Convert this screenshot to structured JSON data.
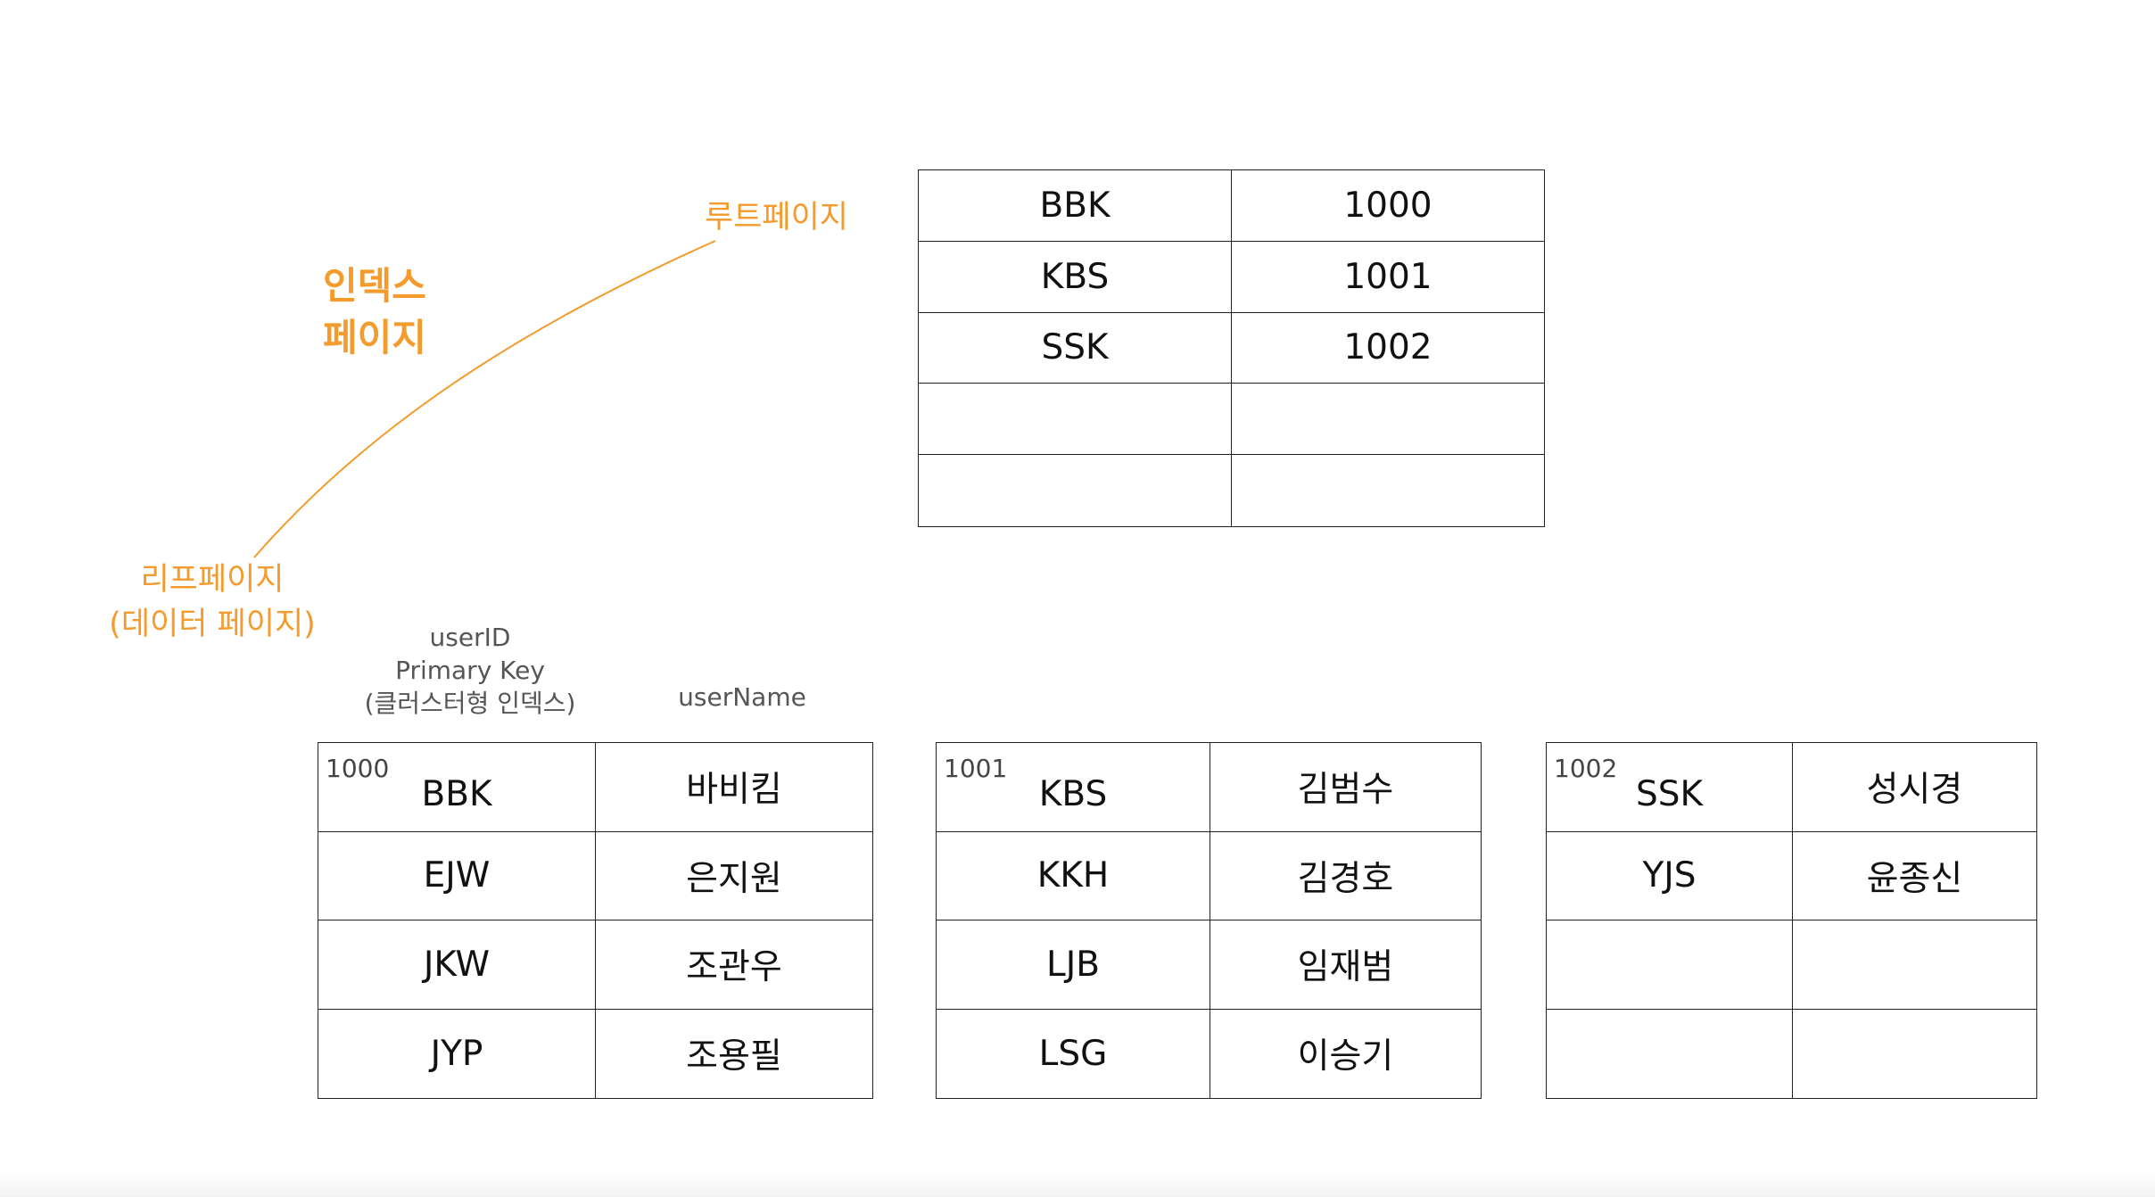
{
  "labels": {
    "root_page": "루트페이지",
    "index_page_line1": "인덱스",
    "index_page_line2": "페이지",
    "leaf_page_line1": "리프페이지",
    "leaf_page_line2": "(데이터 페이지)"
  },
  "column_headers": {
    "user_id_line1": "userID",
    "user_id_line2": "Primary Key",
    "user_id_line3": "(클러스터형 인덱스)",
    "user_name": "userName"
  },
  "colors": {
    "accent": "#F39B2C",
    "border": "#222222"
  },
  "root_table": {
    "rows": [
      [
        "BBK",
        "1000"
      ],
      [
        "KBS",
        "1001"
      ],
      [
        "SSK",
        "1002"
      ],
      [
        "",
        ""
      ],
      [
        "",
        ""
      ]
    ]
  },
  "leaf_pages": [
    {
      "page_no": "1000",
      "rows": [
        [
          "BBK",
          "바비킴"
        ],
        [
          "EJW",
          "은지원"
        ],
        [
          "JKW",
          "조관우"
        ],
        [
          "JYP",
          "조용필"
        ]
      ]
    },
    {
      "page_no": "1001",
      "rows": [
        [
          "KBS",
          "김범수"
        ],
        [
          "KKH",
          "김경호"
        ],
        [
          "LJB",
          "임재범"
        ],
        [
          "LSG",
          "이승기"
        ]
      ]
    },
    {
      "page_no": "1002",
      "rows": [
        [
          "SSK",
          "성시경"
        ],
        [
          "YJS",
          "윤종신"
        ],
        [
          "",
          ""
        ],
        [
          "",
          ""
        ]
      ]
    }
  ]
}
